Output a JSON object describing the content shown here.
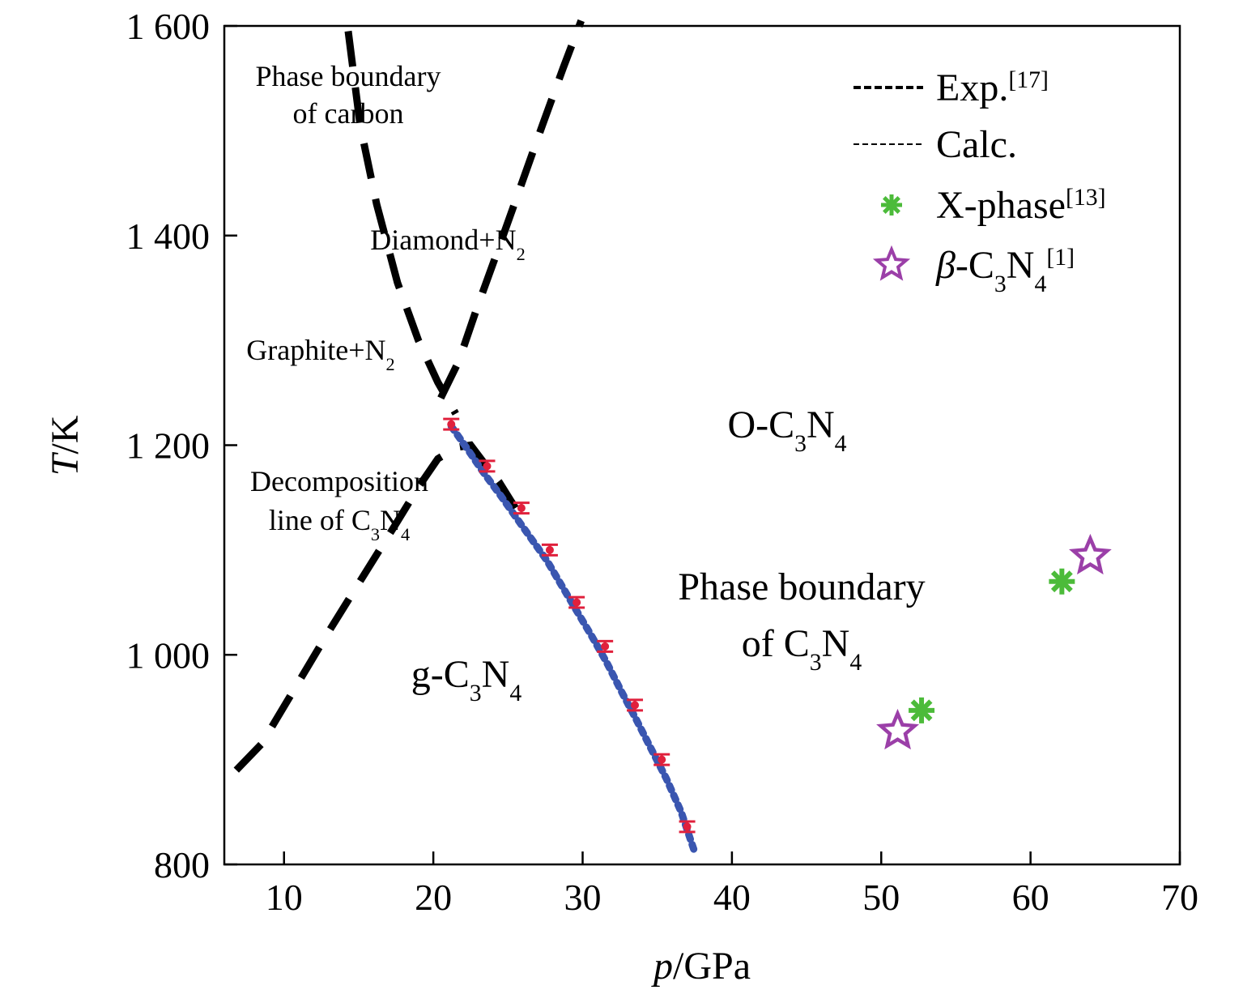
{
  "chart_data": {
    "type": "scatter",
    "xlabel": {
      "italic": "p",
      "rest": "/GPa"
    },
    "ylabel": {
      "italic": "T",
      "rest": "/K"
    },
    "xlim": [
      6,
      70
    ],
    "ylim": [
      800,
      1600
    ],
    "xticks": [
      10,
      20,
      30,
      40,
      50,
      60,
      70
    ],
    "yticks": [
      800,
      1000,
      1200,
      1400,
      1600
    ],
    "ytick_labels": [
      "800",
      "1 000",
      "1 200",
      "1 400",
      "1 600"
    ],
    "grid": false,
    "legend_position": "top-right",
    "legend": [
      {
        "kind": "line",
        "style": "thick-dashed",
        "base": "Exp.",
        "sup": "[17]"
      },
      {
        "kind": "line",
        "style": "thin-dashed",
        "base": "Calc.",
        "sup": ""
      },
      {
        "kind": "marker",
        "marker": "asterisk",
        "color": "#4cbb3a",
        "base": "X-phase",
        "sup": "[13]"
      },
      {
        "kind": "marker",
        "marker": "star",
        "color": "#9b3fa8",
        "base": "β-C₃N₄",
        "sup": "[1]"
      }
    ],
    "annotations": [
      {
        "lines": [
          "Phase boundary",
          "of carbon"
        ],
        "size": "small"
      },
      {
        "lines": [
          "Diamond+N₂"
        ],
        "size": "small"
      },
      {
        "lines": [
          "Graphite+N₂"
        ],
        "size": "small"
      },
      {
        "lines": [
          "Decomposition",
          "line of C₃N₄"
        ],
        "size": "small"
      },
      {
        "lines": [
          "O-C₃N₄"
        ],
        "size": "large"
      },
      {
        "lines": [
          "Phase boundary",
          "of C₃N₄"
        ],
        "size": "large"
      },
      {
        "lines": [
          "g-C₃N₄"
        ],
        "size": "large"
      }
    ],
    "series": [
      {
        "role": "exp-carbon-boundary",
        "style": "thick-dashed",
        "color": "#000000",
        "x": [
          14.3,
          15.1,
          16.2,
          17.6,
          19.0,
          20.3,
          21.5
        ],
        "y": [
          1595,
          1505,
          1430,
          1355,
          1300,
          1260,
          1230
        ]
      },
      {
        "role": "exp-diamond-graphite-boundary",
        "style": "thick-dashed",
        "color": "#000000",
        "x": [
          20.5,
          21.7,
          22.9,
          24.3,
          25.8,
          27.3,
          28.7,
          29.9
        ],
        "y": [
          1245,
          1280,
          1330,
          1385,
          1445,
          1505,
          1560,
          1605
        ]
      },
      {
        "role": "exp-decomposition-line",
        "style": "thick-dashed",
        "color": "#000000",
        "x": [
          6.8,
          8.5,
          10.6,
          12.9,
          15.3,
          17.5,
          19.0,
          20.3,
          21.6,
          22.5,
          23.4,
          24.4,
          25.5
        ],
        "y": [
          890,
          915,
          965,
          1020,
          1075,
          1125,
          1160,
          1187,
          1198,
          1200,
          1183,
          1165,
          1140
        ]
      },
      {
        "role": "calc-phase-boundary",
        "style": "dotted",
        "color": "#3a56b0",
        "x": [
          21.2,
          22.2,
          23.3,
          24.5,
          25.5,
          26.6,
          27.6,
          28.6,
          29.6,
          30.6,
          31.6,
          32.6,
          33.6,
          34.6,
          35.6,
          36.6,
          37.5
        ],
        "y": [
          1218,
          1198,
          1175,
          1152,
          1132,
          1110,
          1090,
          1066,
          1042,
          1018,
          993,
          965,
          938,
          910,
          882,
          850,
          812
        ]
      },
      {
        "role": "exp-error-points",
        "style": "errorbar",
        "color": "#e0203c",
        "x": [
          21.2,
          23.6,
          25.9,
          27.8,
          29.6,
          31.5,
          33.5,
          35.3,
          37.0
        ],
        "y": [
          1220,
          1180,
          1140,
          1100,
          1050,
          1008,
          952,
          900,
          836
        ],
        "err": 5
      },
      {
        "role": "X-phase",
        "marker": "asterisk",
        "color": "#4cbb3a",
        "x": [
          52.7,
          62.1
        ],
        "y": [
          947,
          1070
        ]
      },
      {
        "role": "beta-C3N4",
        "marker": "star",
        "color": "#9b3fa8",
        "x": [
          51.1,
          64.0
        ],
        "y": [
          927,
          1094
        ]
      }
    ]
  }
}
